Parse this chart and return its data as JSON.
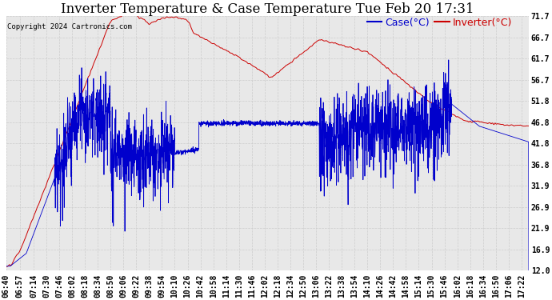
{
  "title": "Inverter Temperature & Case Temperature Tue Feb 20 17:31",
  "copyright": "Copyright 2024 Cartronics.com",
  "legend_case": "Case(°C)",
  "legend_inverter": "Inverter(°C)",
  "ylabel_right_ticks": [
    71.7,
    66.7,
    61.7,
    56.7,
    51.8,
    46.8,
    41.8,
    36.8,
    31.9,
    26.9,
    21.9,
    16.9,
    12.0
  ],
  "ymin": 12.0,
  "ymax": 71.7,
  "bg_color": "#ffffff",
  "plot_bg_color": "#e8e8e8",
  "grid_color": "#cccccc",
  "case_color": "#0000cc",
  "inverter_color": "#cc0000",
  "title_fontsize": 12,
  "tick_fontsize": 7,
  "legend_fontsize": 9,
  "xtick_labels": [
    "06:40",
    "06:57",
    "07:14",
    "07:30",
    "07:46",
    "08:02",
    "08:18",
    "08:34",
    "08:50",
    "09:06",
    "09:22",
    "09:38",
    "09:54",
    "10:10",
    "10:26",
    "10:42",
    "10:58",
    "11:14",
    "11:30",
    "11:46",
    "12:02",
    "12:18",
    "12:34",
    "12:50",
    "13:06",
    "13:22",
    "13:38",
    "13:54",
    "14:10",
    "14:26",
    "14:42",
    "14:58",
    "15:14",
    "15:30",
    "15:46",
    "16:02",
    "16:18",
    "16:34",
    "16:50",
    "17:06",
    "17:22"
  ]
}
